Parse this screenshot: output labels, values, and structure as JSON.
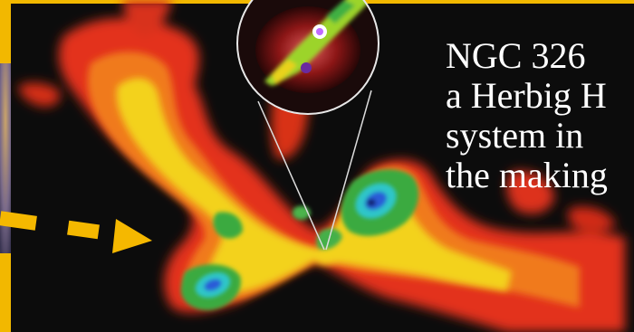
{
  "caption": {
    "lines": [
      "NGC 326",
      "a Herbig H",
      "system in",
      "the making"
    ]
  },
  "colors": {
    "background": "#0c0c0c",
    "frame_border": "#f2b800",
    "arrow": "#f5b800",
    "lobe_red": "#e8321c",
    "lobe_orange": "#f07a1a",
    "lobe_yellow": "#f3d21a",
    "lobe_green": "#30b24a",
    "lobe_blue": "#2a5bd7",
    "text": "#ffffff"
  },
  "icons": {
    "arrow": "dashed-arrow-right",
    "inset": "circular-magnified-inset"
  }
}
